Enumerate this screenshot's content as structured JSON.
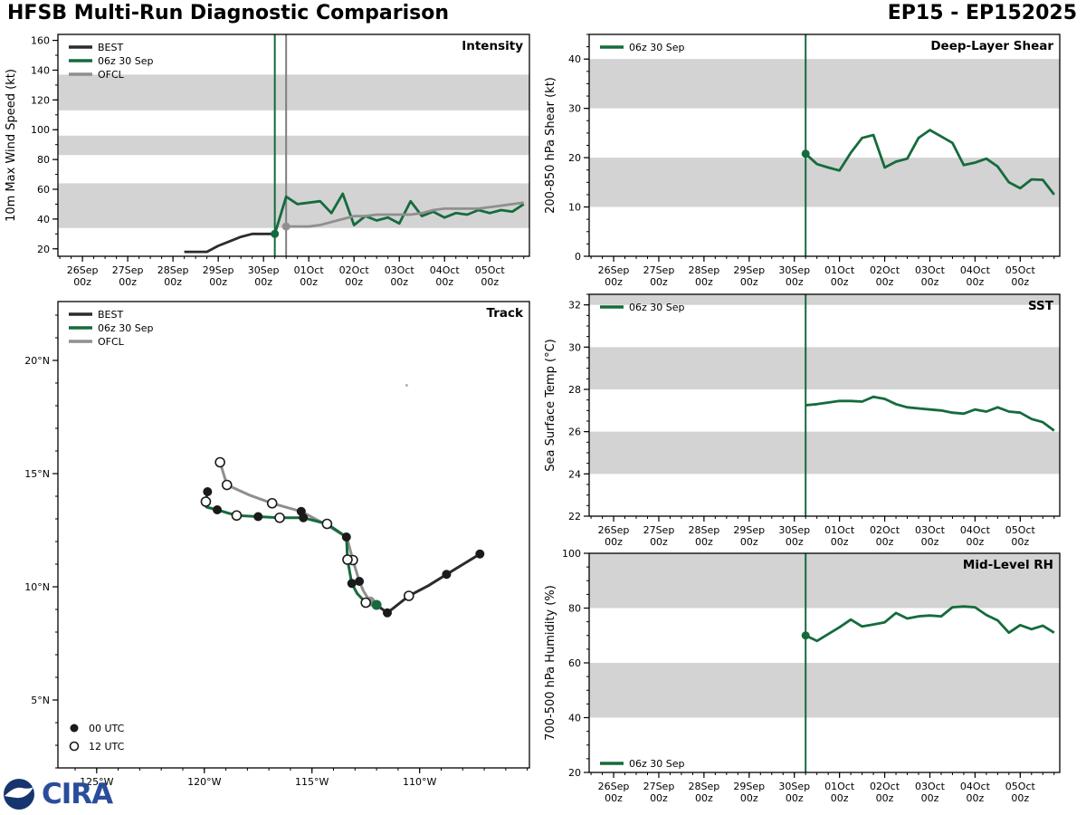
{
  "header": {
    "title_left": "HFSB Multi-Run Diagnostic Comparison",
    "title_right": "EP15 - EP152025"
  },
  "logos": {
    "cira": "CIRA"
  },
  "colors": {
    "best": "#2b2b2b",
    "model": "#156b3c",
    "ofcl": "#8f8f8f",
    "band": "#d3d3d3",
    "init_gray": "#7f7f7f"
  },
  "time_axis": {
    "xlim_hours": [
      -13,
      237
    ],
    "minor_step": 6,
    "sub_label": "00z",
    "major_ticks": [
      {
        "t": 0,
        "label": "26Sep"
      },
      {
        "t": 24,
        "label": "27Sep"
      },
      {
        "t": 48,
        "label": "28Sep"
      },
      {
        "t": 72,
        "label": "29Sep"
      },
      {
        "t": 96,
        "label": "30Sep"
      },
      {
        "t": 120,
        "label": "01Oct"
      },
      {
        "t": 144,
        "label": "02Oct"
      },
      {
        "t": 168,
        "label": "03Oct"
      },
      {
        "t": 192,
        "label": "04Oct"
      },
      {
        "t": 216,
        "label": "05Oct"
      }
    ]
  },
  "chart_data": [
    {
      "id": "intensity",
      "type": "line",
      "title": "Intensity",
      "ylabel": "10m Max Wind Speed (kt)",
      "ylim": [
        15,
        164
      ],
      "yticks": [
        20,
        40,
        60,
        80,
        100,
        120,
        140,
        160
      ],
      "yminor": 10,
      "bands": [
        [
          34,
          64
        ],
        [
          83,
          96
        ],
        [
          113,
          137
        ]
      ],
      "vlines": [
        {
          "t": 102,
          "color_key": "model"
        },
        {
          "t": 108,
          "color_key": "init_gray"
        }
      ],
      "legend": {
        "position": "top-left",
        "items": [
          {
            "label": "BEST",
            "color_key": "best"
          },
          {
            "label": "06z 30 Sep",
            "color_key": "model"
          },
          {
            "label": "OFCL",
            "color_key": "ofcl"
          }
        ]
      },
      "series": [
        {
          "name": "BEST",
          "color_key": "best",
          "t0": 54,
          "dt": 6,
          "values": [
            18,
            18,
            18,
            22,
            25,
            28,
            30,
            30,
            30
          ]
        },
        {
          "name": "06z-30-Sep",
          "color_key": "model",
          "t0": 102,
          "dt": 6,
          "init_dot": true,
          "values": [
            30,
            55,
            50,
            51,
            52,
            44,
            57,
            36,
            42,
            39,
            41,
            37,
            52,
            42,
            45,
            41,
            44,
            43,
            46,
            44,
            46,
            45,
            50
          ]
        },
        {
          "name": "OFCL",
          "color_key": "ofcl",
          "t0": 108,
          "dt": 6,
          "init_dot": true,
          "values": [
            35,
            35,
            35,
            36,
            38,
            40,
            42,
            42,
            43,
            43,
            43,
            43,
            44,
            46,
            47,
            47,
            47,
            47,
            48,
            49,
            50,
            51
          ]
        }
      ]
    },
    {
      "id": "shear",
      "type": "line",
      "title": "Deep-Layer Shear",
      "ylabel": "200-850 hPa Shear (kt)",
      "ylim": [
        0,
        45
      ],
      "yticks": [
        0,
        10,
        20,
        30,
        40
      ],
      "yminor": 2.5,
      "bands": [
        [
          10,
          20
        ],
        [
          30,
          40
        ]
      ],
      "vlines": [
        {
          "t": 102,
          "color_key": "model"
        }
      ],
      "legend": {
        "position": "top-left",
        "items": [
          {
            "label": "06z 30 Sep",
            "color_key": "model"
          }
        ]
      },
      "series": [
        {
          "name": "06z-30-Sep",
          "color_key": "model",
          "t0": 102,
          "dt": 6,
          "init_dot": true,
          "values": [
            20.8,
            18.7,
            18.0,
            17.4,
            21.0,
            24.0,
            24.6,
            18.0,
            19.2,
            19.8,
            24.0,
            25.6,
            24.3,
            23.0,
            18.5,
            19.0,
            19.8,
            18.2,
            15.0,
            13.8,
            15.6,
            15.5,
            12.5
          ]
        }
      ]
    },
    {
      "id": "track",
      "type": "map",
      "title": "Track",
      "lon_lim": [
        126.8,
        104.9
      ],
      "lat_lim": [
        2.0,
        22.6
      ],
      "lon_ticks": [
        {
          "v": 125,
          "label": "125°W"
        },
        {
          "v": 120,
          "label": "120°W"
        },
        {
          "v": 115,
          "label": "115°W"
        },
        {
          "v": 110,
          "label": "110°W"
        }
      ],
      "lat_ticks": [
        {
          "v": 5,
          "label": "5°N"
        },
        {
          "v": 10,
          "label": "10°N"
        },
        {
          "v": 15,
          "label": "15°N"
        },
        {
          "v": 20,
          "label": "20°N"
        }
      ],
      "minor_deg": 1,
      "legend": {
        "position": "top-left",
        "items": [
          {
            "label": "BEST",
            "color_key": "best"
          },
          {
            "label": "06z 30 Sep",
            "color_key": "model"
          },
          {
            "label": "OFCL",
            "color_key": "ofcl"
          }
        ]
      },
      "marker_legend": [
        {
          "marker": "filled",
          "label": "00 UTC"
        },
        {
          "marker": "open",
          "label": "12 UTC"
        }
      ],
      "features": [
        {
          "lon": 110.6,
          "lat": 18.9,
          "name": "island"
        }
      ],
      "tracks": [
        {
          "name": "OFCL",
          "color_key": "ofcl",
          "path": [
            [
              112.3,
              9.35
            ],
            [
              112.6,
              9.8
            ],
            [
              112.8,
              10.24
            ],
            [
              113.1,
              11.18
            ],
            [
              113.38,
              12.18
            ],
            [
              114.3,
              12.72
            ],
            [
              115.5,
              13.33
            ],
            [
              116.85,
              13.69
            ],
            [
              117.9,
              14.05
            ],
            [
              118.95,
              14.5
            ],
            [
              119.27,
              15.5
            ]
          ],
          "markers": [
            {
              "lon": 112.3,
              "lat": 9.35,
              "type": "init"
            },
            {
              "lon": 112.8,
              "lat": 10.24,
              "type": "filled"
            },
            {
              "lon": 113.1,
              "lat": 11.18,
              "type": "open"
            },
            {
              "lon": 115.5,
              "lat": 13.33,
              "type": "filled"
            },
            {
              "lon": 116.85,
              "lat": 13.69,
              "type": "open"
            },
            {
              "lon": 118.95,
              "lat": 14.5,
              "type": "open"
            },
            {
              "lon": 119.27,
              "lat": 15.5,
              "type": "open"
            }
          ]
        },
        {
          "name": "BEST",
          "color_key": "best",
          "path": [
            [
              107.2,
              11.45
            ],
            [
              108.75,
              10.55
            ],
            [
              109.6,
              10.05
            ],
            [
              110.5,
              9.6
            ],
            [
              111.5,
              8.85
            ],
            [
              112.0,
              9.2
            ]
          ],
          "markers": [
            {
              "lon": 107.2,
              "lat": 11.45,
              "type": "filled"
            },
            {
              "lon": 108.75,
              "lat": 10.55,
              "type": "filled"
            },
            {
              "lon": 110.5,
              "lat": 9.6,
              "type": "open"
            },
            {
              "lon": 111.5,
              "lat": 8.85,
              "type": "filled"
            }
          ]
        },
        {
          "name": "06z-30-Sep",
          "color_key": "model",
          "path": [
            [
              112.0,
              9.2
            ],
            [
              112.5,
              9.3
            ],
            [
              112.9,
              9.7
            ],
            [
              113.15,
              10.15
            ],
            [
              113.35,
              11.2
            ],
            [
              113.4,
              12.2
            ],
            [
              114.3,
              12.78
            ],
            [
              115.4,
              13.05
            ],
            [
              116.5,
              13.05
            ],
            [
              117.5,
              13.1
            ],
            [
              118.5,
              13.15
            ],
            [
              119.4,
              13.4
            ],
            [
              119.9,
              13.52
            ],
            [
              119.93,
              13.76
            ],
            [
              119.85,
              14.2
            ]
          ],
          "markers": [
            {
              "lon": 112.0,
              "lat": 9.2,
              "type": "init"
            },
            {
              "lon": 112.5,
              "lat": 9.3,
              "type": "open"
            },
            {
              "lon": 113.15,
              "lat": 10.15,
              "type": "filled"
            },
            {
              "lon": 113.35,
              "lat": 11.2,
              "type": "open"
            },
            {
              "lon": 113.4,
              "lat": 12.2,
              "type": "filled"
            },
            {
              "lon": 114.3,
              "lat": 12.78,
              "type": "open"
            },
            {
              "lon": 115.4,
              "lat": 13.05,
              "type": "filled"
            },
            {
              "lon": 116.5,
              "lat": 13.05,
              "type": "open"
            },
            {
              "lon": 117.5,
              "lat": 13.1,
              "type": "filled"
            },
            {
              "lon": 118.5,
              "lat": 13.15,
              "type": "open"
            },
            {
              "lon": 119.4,
              "lat": 13.4,
              "type": "filled"
            },
            {
              "lon": 119.93,
              "lat": 13.76,
              "type": "open"
            },
            {
              "lon": 119.85,
              "lat": 14.2,
              "type": "filled"
            }
          ]
        }
      ]
    },
    {
      "id": "sst",
      "type": "line",
      "title": "SST",
      "ylabel": "Sea Surface Temp (°C)",
      "ylim": [
        22,
        32.5
      ],
      "yticks": [
        22,
        24,
        26,
        28,
        30,
        32
      ],
      "yminor": 0.5,
      "bands": [
        [
          24,
          26
        ],
        [
          28,
          30
        ],
        [
          32,
          32.5
        ]
      ],
      "vlines": [
        {
          "t": 102,
          "color_key": "model"
        }
      ],
      "legend": {
        "position": "top-left",
        "items": [
          {
            "label": "06z 30 Sep",
            "color_key": "model"
          }
        ]
      },
      "series": [
        {
          "name": "06z-30-Sep",
          "color_key": "model",
          "t0": 102,
          "dt": 6,
          "values": [
            27.25,
            27.3,
            27.38,
            27.45,
            27.45,
            27.42,
            27.65,
            27.55,
            27.3,
            27.15,
            27.1,
            27.05,
            27.0,
            26.9,
            26.85,
            27.05,
            26.95,
            27.15,
            26.95,
            26.9,
            26.6,
            26.45,
            26.05
          ]
        }
      ]
    },
    {
      "id": "rh",
      "type": "line",
      "title": "Mid-Level RH",
      "ylabel": "700-500 hPa Humidity (%)",
      "ylim": [
        20,
        100
      ],
      "yticks": [
        20,
        40,
        60,
        80,
        100
      ],
      "yminor": 5,
      "bands": [
        [
          40,
          60
        ],
        [
          80,
          100
        ]
      ],
      "vlines": [
        {
          "t": 102,
          "color_key": "model"
        }
      ],
      "legend": {
        "position": "bottom-left",
        "items": [
          {
            "label": "06z 30 Sep",
            "color_key": "model"
          }
        ]
      },
      "series": [
        {
          "name": "06z-30-Sep",
          "color_key": "model",
          "t0": 102,
          "dt": 6,
          "init_dot": true,
          "values": [
            70,
            68,
            70.5,
            73,
            75.8,
            73.3,
            74.0,
            74.8,
            78.2,
            76.2,
            77.0,
            77.3,
            77.0,
            80.3,
            80.6,
            80.3,
            77.5,
            75.5,
            71.0,
            73.8,
            72.3,
            73.6,
            71.0
          ]
        }
      ]
    }
  ]
}
